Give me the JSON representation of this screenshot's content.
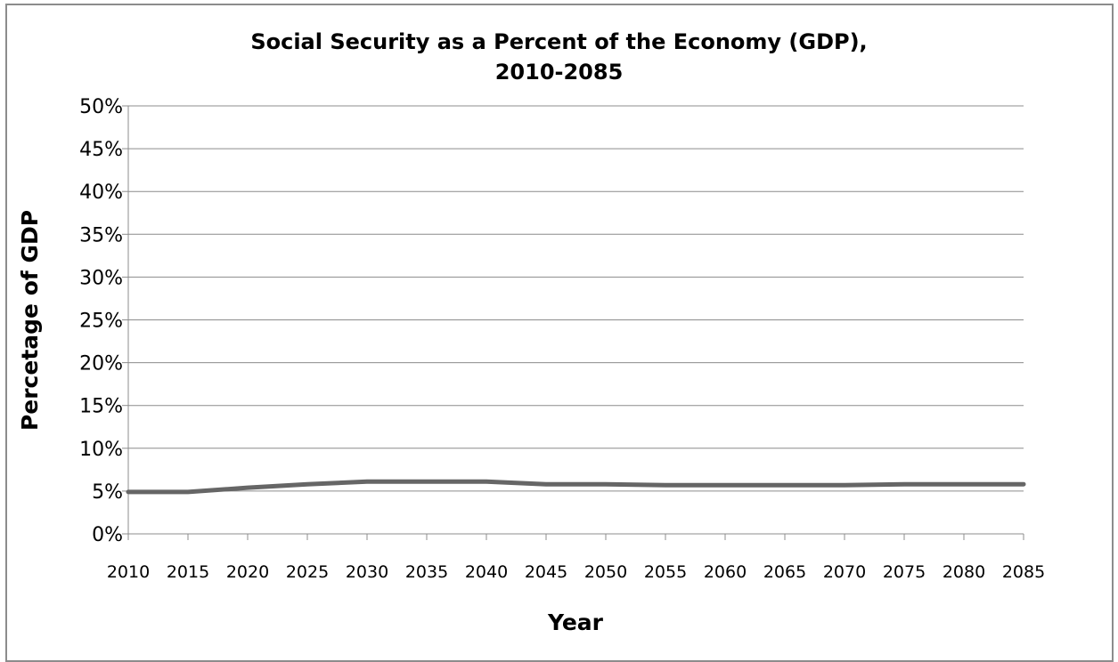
{
  "chart_data": {
    "type": "line",
    "title_line1": "Social Security as a Percent of the Economy (GDP),",
    "title_line2": "2010-2085",
    "xlabel": "Year",
    "ylabel": "Percetage of GDP",
    "x": [
      "2010",
      "2015",
      "2020",
      "2025",
      "2030",
      "2035",
      "2040",
      "2045",
      "2050",
      "2055",
      "2060",
      "2065",
      "2070",
      "2075",
      "2080",
      "2085"
    ],
    "y_ticks": [
      "0%",
      "5%",
      "10%",
      "15%",
      "20%",
      "25%",
      "30%",
      "35%",
      "40%",
      "45%",
      "50%"
    ],
    "ylim": [
      0,
      50
    ],
    "grid": true,
    "legend": "none",
    "series": [
      {
        "values": [
          4.9,
          4.9,
          5.4,
          5.8,
          6.1,
          6.1,
          6.1,
          5.8,
          5.8,
          5.7,
          5.7,
          5.7,
          5.7,
          5.8,
          5.8,
          5.8
        ],
        "color": "#666666"
      }
    ]
  }
}
